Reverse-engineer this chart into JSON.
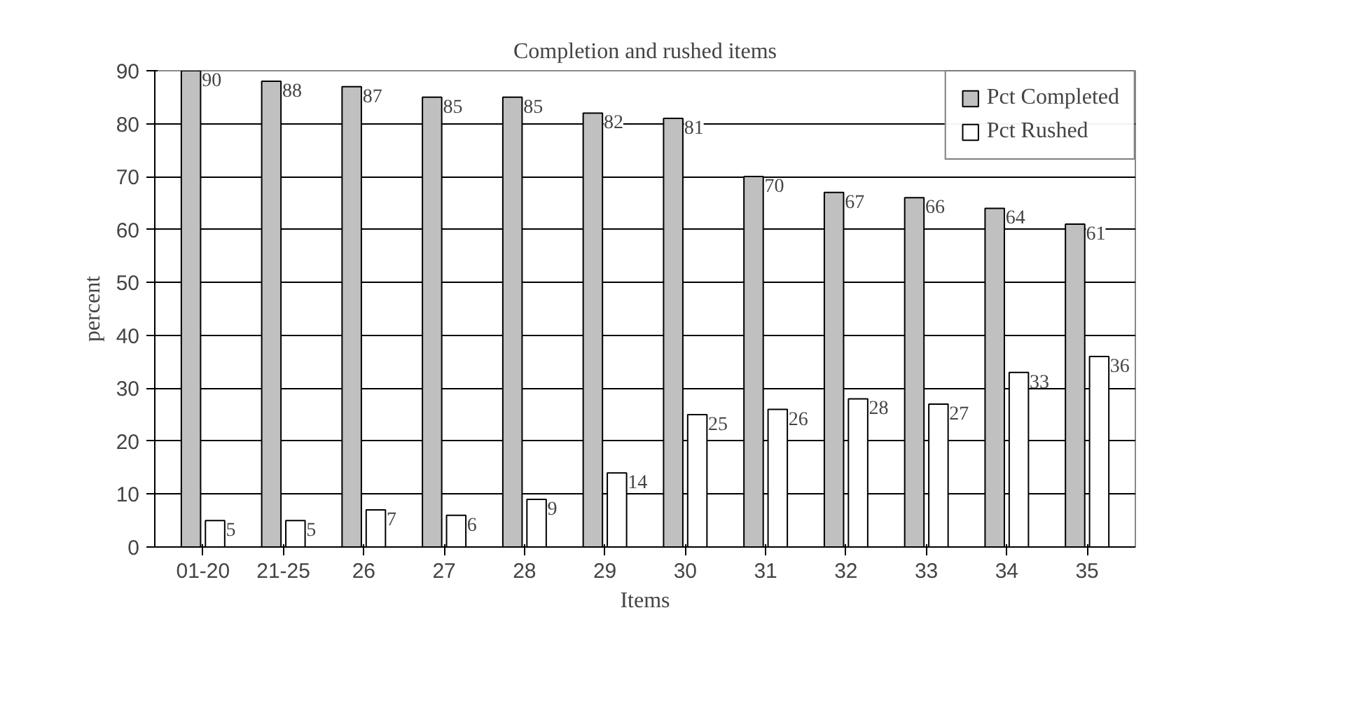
{
  "chart_data": {
    "type": "bar",
    "title": "Completion and rushed items",
    "xlabel": "Items",
    "ylabel": "percent",
    "categories": [
      "01-20",
      "21-25",
      "26",
      "27",
      "28",
      "29",
      "30",
      "31",
      "32",
      "33",
      "34",
      "35"
    ],
    "series": [
      {
        "name": "Pct Completed",
        "color": "#c0c0c0",
        "values": [
          90,
          88,
          87,
          85,
          85,
          82,
          81,
          70,
          67,
          66,
          64,
          61
        ]
      },
      {
        "name": "Pct Rushed",
        "color": "#ffffff",
        "values": [
          5,
          5,
          7,
          6,
          9,
          14,
          25,
          26,
          28,
          27,
          33,
          36
        ]
      }
    ],
    "ylim": [
      0,
      90
    ],
    "yticks": [
      0,
      10,
      20,
      30,
      40,
      50,
      60,
      70,
      80,
      90
    ],
    "grid": "y",
    "legend": "top right",
    "data_labels": true
  }
}
